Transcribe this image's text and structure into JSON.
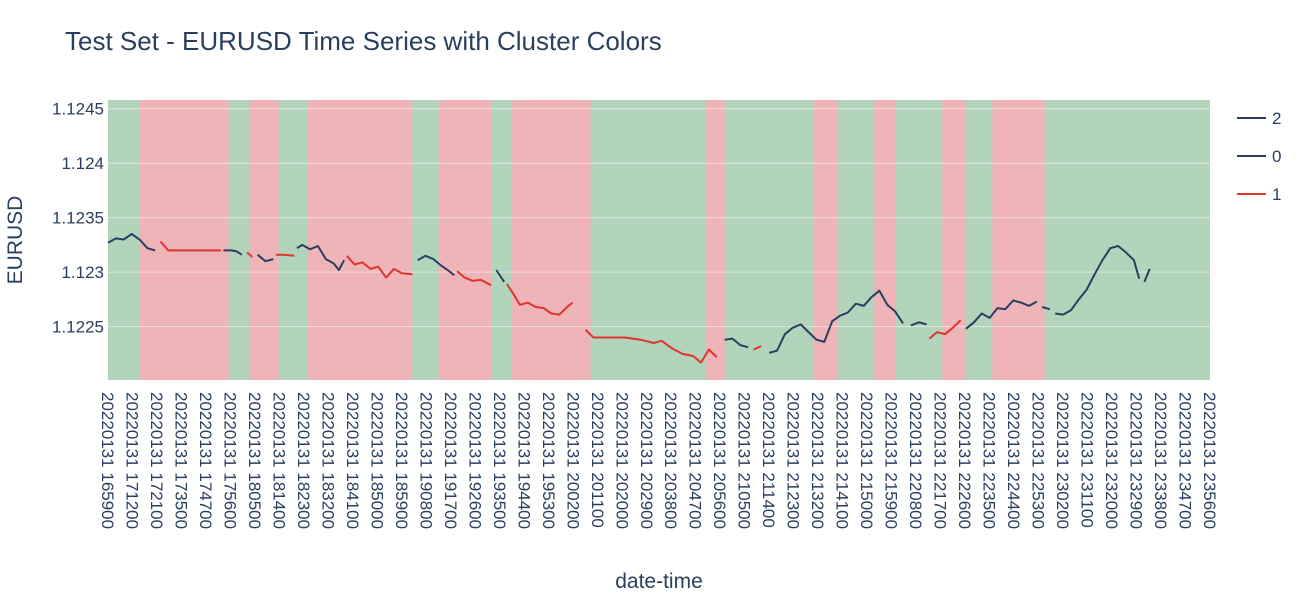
{
  "chart_data": {
    "type": "line",
    "title": "Test Set - EURUSD Time Series with Cluster Colors",
    "xlabel": "date-time",
    "ylabel": "EURUSD",
    "ylim": [
      1.12201,
      1.12458
    ],
    "yticks": [
      {
        "value": 1.1225,
        "label": "1.1225"
      },
      {
        "value": 1.123,
        "label": "1.123"
      },
      {
        "value": 1.1235,
        "label": "1.1235"
      },
      {
        "value": 1.124,
        "label": "1.124"
      },
      {
        "value": 1.1245,
        "label": "1.1245"
      }
    ],
    "x_start": "20220131 165900",
    "x_end": "20220131 235900",
    "x_tick_labels": [
      "20220131 165900",
      "20220131 171200",
      "20220131 172100",
      "20220131 173500",
      "20220131 174700",
      "20220131 175600",
      "20220131 180500",
      "20220131 181400",
      "20220131 182300",
      "20220131 183200",
      "20220131 184100",
      "20220131 185000",
      "20220131 185900",
      "20220131 190800",
      "20220131 191700",
      "20220131 192600",
      "20220131 193500",
      "20220131 194400",
      "20220131 195300",
      "20220131 200200",
      "20220131 201100",
      "20220131 202000",
      "20220131 202900",
      "20220131 203800",
      "20220131 204700",
      "20220131 205600",
      "20220131 210500",
      "20220131 211400",
      "20220131 212300",
      "20220131 213200",
      "20220131 214100",
      "20220131 215000",
      "20220131 215900",
      "20220131 220800",
      "20220131 221700",
      "20220131 222600",
      "20220131 223500",
      "20220131 224400",
      "20220131 225300",
      "20220131 230200",
      "20220131 231100",
      "20220131 232000",
      "20220131 232900",
      "20220131 233800",
      "20220131 234700",
      "20220131 235600"
    ],
    "legend": [
      {
        "name": "2",
        "color": "#2a3f5f"
      },
      {
        "name": "0",
        "color": "#2a3f5f"
      },
      {
        "name": "1",
        "color": "#e0342f"
      }
    ],
    "legend_position": "right",
    "background_bands": [
      {
        "x0": "20220131 165900",
        "x1": "20220131 171100",
        "color": "#b2d4bb"
      },
      {
        "x0": "20220131 171100",
        "x1": "20220131 174500",
        "color": "#eeb4b8"
      },
      {
        "x0": "20220131 174500",
        "x1": "20220131 175300",
        "color": "#b2d4bb"
      },
      {
        "x0": "20220131 175300",
        "x1": "20220131 180400",
        "color": "#eeb4b8"
      },
      {
        "x0": "20220131 180400",
        "x1": "20220131 181500",
        "color": "#b2d4bb"
      },
      {
        "x0": "20220131 181500",
        "x1": "20220131 185500",
        "color": "#eeb4b8"
      },
      {
        "x0": "20220131 185500",
        "x1": "20220131 190500",
        "color": "#b2d4bb"
      },
      {
        "x0": "20220131 190500",
        "x1": "20220131 192500",
        "color": "#eeb4b8"
      },
      {
        "x0": "20220131 192500",
        "x1": "20220131 193300",
        "color": "#b2d4bb"
      },
      {
        "x0": "20220131 193300",
        "x1": "20220131 200300",
        "color": "#eeb4b8"
      },
      {
        "x0": "20220131 200300",
        "x1": "20220131 201300",
        "color": "#b2d4bb"
      },
      {
        "x0": "20220131 201300",
        "x1": "20220131 204700",
        "color": "#b2d4bb"
      },
      {
        "x0": "20220131 204700",
        "x1": "20220131 205400",
        "color": "#eeb4b8"
      },
      {
        "x0": "20220131 205400",
        "x1": "20220131 210500",
        "color": "#b2d4bb"
      },
      {
        "x0": "20220131 210500",
        "x1": "20220131 212800",
        "color": "#b2d4bb"
      },
      {
        "x0": "20220131 212800",
        "x1": "20220131 213700",
        "color": "#eeb4b8"
      },
      {
        "x0": "20220131 213700",
        "x1": "20220131 214000",
        "color": "#b2d4bb"
      },
      {
        "x0": "20220131 214000",
        "x1": "20220131 215100",
        "color": "#b2d4bb"
      },
      {
        "x0": "20220131 215100",
        "x1": "20220131 215900",
        "color": "#eeb4b8"
      },
      {
        "x0": "20220131 215900",
        "x1": "20220131 221700",
        "color": "#b2d4bb"
      },
      {
        "x0": "20220131 221700",
        "x1": "20220131 222600",
        "color": "#eeb4b8"
      },
      {
        "x0": "20220131 222600",
        "x1": "20220131 223600",
        "color": "#b2d4bb"
      },
      {
        "x0": "20220131 223600",
        "x1": "20220131 225600",
        "color": "#eeb4b8"
      },
      {
        "x0": "20220131 225600",
        "x1": "20220131 230800",
        "color": "#b2d4bb"
      },
      {
        "x0": "20220131 230800",
        "x1": "20220131 235900",
        "color": "#b2d4bb"
      }
    ],
    "series": [
      {
        "name": "0",
        "color": "#2a3f5f",
        "points": [
          [
            "20220131 165900",
            1.12327
          ],
          [
            "20220131 170200",
            1.12331
          ],
          [
            "20220131 170500",
            1.1233
          ],
          [
            "20220131 170800",
            1.12335
          ],
          [
            "20220131 171100",
            1.1233
          ],
          [
            "20220131 171400",
            1.12322
          ],
          [
            "20220131 171700",
            1.1232
          ]
        ]
      },
      {
        "name": "1",
        "color": "#e0342f",
        "points": [
          [
            "20220131 171900",
            1.12328
          ],
          [
            "20220131 172200",
            1.1232
          ],
          [
            "20220131 172800",
            1.1232
          ],
          [
            "20220131 173500",
            1.1232
          ],
          [
            "20220131 174200",
            1.1232
          ]
        ]
      },
      {
        "name": "0",
        "color": "#2a3f5f",
        "points": [
          [
            "20220131 174300",
            1.1232
          ],
          [
            "20220131 174600",
            1.1232
          ],
          [
            "20220131 174800",
            1.12319
          ],
          [
            "20220131 175000",
            1.12316
          ]
        ]
      },
      {
        "name": "1",
        "color": "#e0342f",
        "points": [
          [
            "20220131 175200",
            1.12318
          ],
          [
            "20220131 175400",
            1.12314
          ]
        ]
      },
      {
        "name": "0",
        "color": "#2a3f5f",
        "points": [
          [
            "20220131 175600",
            1.12316
          ],
          [
            "20220131 175900",
            1.1231
          ],
          [
            "20220131 180200",
            1.12312
          ]
        ]
      },
      {
        "name": "1",
        "color": "#e0342f",
        "points": [
          [
            "20220131 180300",
            1.12316
          ],
          [
            "20220131 180600",
            1.12316
          ],
          [
            "20220131 181000",
            1.12315
          ]
        ]
      },
      {
        "name": "0",
        "color": "#2a3f5f",
        "points": [
          [
            "20220131 181100",
            1.12322
          ],
          [
            "20220131 181300",
            1.12325
          ],
          [
            "20220131 181600",
            1.12321
          ],
          [
            "20220131 181900",
            1.12324
          ],
          [
            "20220131 182200",
            1.12312
          ],
          [
            "20220131 182500",
            1.12308
          ],
          [
            "20220131 182700",
            1.12302
          ],
          [
            "20220131 182900",
            1.12311
          ]
        ]
      },
      {
        "name": "1",
        "color": "#e0342f",
        "points": [
          [
            "20220131 183000",
            1.12315
          ],
          [
            "20220131 183300",
            1.12307
          ],
          [
            "20220131 183600",
            1.12309
          ],
          [
            "20220131 183900",
            1.12303
          ],
          [
            "20220131 184200",
            1.12305
          ],
          [
            "20220131 184500",
            1.12295
          ],
          [
            "20220131 184800",
            1.12303
          ],
          [
            "20220131 185100",
            1.12299
          ],
          [
            "20220131 185500",
            1.12298
          ]
        ]
      },
      {
        "name": "0",
        "color": "#2a3f5f",
        "points": [
          [
            "20220131 185700",
            1.12311
          ],
          [
            "20220131 190000",
            1.12315
          ],
          [
            "20220131 190300",
            1.12312
          ],
          [
            "20220131 190600",
            1.12306
          ],
          [
            "20220131 190900",
            1.12301
          ],
          [
            "20220131 191100",
            1.12297
          ]
        ]
      },
      {
        "name": "1",
        "color": "#e0342f",
        "points": [
          [
            "20220131 191200",
            1.12301
          ],
          [
            "20220131 191500",
            1.12295
          ],
          [
            "20220131 191800",
            1.12292
          ],
          [
            "20220131 192100",
            1.12293
          ],
          [
            "20220131 192500",
            1.12288
          ]
        ]
      },
      {
        "name": "0",
        "color": "#2a3f5f",
        "points": [
          [
            "20220131 192700",
            1.12302
          ],
          [
            "20220131 193000",
            1.12291
          ]
        ]
      },
      {
        "name": "1",
        "color": "#e0342f",
        "points": [
          [
            "20220131 193100",
            1.12289
          ],
          [
            "20220131 193300",
            1.12282
          ],
          [
            "20220131 193600",
            1.1227
          ],
          [
            "20220131 193900",
            1.12272
          ],
          [
            "20220131 194200",
            1.12268
          ],
          [
            "20220131 194500",
            1.12267
          ],
          [
            "20220131 194800",
            1.12262
          ],
          [
            "20220131 195100",
            1.12261
          ],
          [
            "20220131 195400",
            1.12268
          ],
          [
            "20220131 195600",
            1.12272
          ]
        ]
      },
      {
        "name": "1",
        "color": "#e0342f",
        "points": [
          [
            "20220131 200100",
            1.12247
          ],
          [
            "20220131 200400",
            1.1224
          ],
          [
            "20220131 201000",
            1.1224
          ],
          [
            "20220131 201600",
            1.1224
          ],
          [
            "20220131 202200",
            1.12238
          ],
          [
            "20220131 202700",
            1.12235
          ],
          [
            "20220131 203000",
            1.12237
          ],
          [
            "20220131 203400",
            1.1223
          ],
          [
            "20220131 203800",
            1.12225
          ],
          [
            "20220131 204200",
            1.12223
          ],
          [
            "20220131 204500",
            1.12217
          ],
          [
            "20220131 204800",
            1.12229
          ],
          [
            "20220131 205100",
            1.12222
          ]
        ]
      },
      {
        "name": "0",
        "color": "#2a3f5f",
        "points": [
          [
            "20220131 205400",
            1.12238
          ],
          [
            "20220131 205700",
            1.12239
          ],
          [
            "20220131 210000",
            1.12233
          ],
          [
            "20220131 210300",
            1.12231
          ]
        ]
      },
      {
        "name": "1",
        "color": "#e0342f",
        "points": [
          [
            "20220131 210500",
            1.12229
          ],
          [
            "20220131 210800",
            1.12232
          ]
        ]
      },
      {
        "name": "0",
        "color": "#2a3f5f",
        "points": [
          [
            "20220131 211100",
            1.12226
          ],
          [
            "20220131 211400",
            1.12228
          ],
          [
            "20220131 211700",
            1.12243
          ],
          [
            "20220131 212000",
            1.12249
          ],
          [
            "20220131 212300",
            1.12252
          ],
          [
            "20220131 212600",
            1.12245
          ],
          [
            "20220131 212900",
            1.12238
          ],
          [
            "20220131 213200",
            1.12236
          ],
          [
            "20220131 213500",
            1.12255
          ],
          [
            "20220131 213800",
            1.1226
          ],
          [
            "20220131 214100",
            1.12263
          ],
          [
            "20220131 214400",
            1.12271
          ],
          [
            "20220131 214700",
            1.12269
          ],
          [
            "20220131 215000",
            1.12277
          ],
          [
            "20220131 215300",
            1.12283
          ],
          [
            "20220131 215600",
            1.1227
          ],
          [
            "20220131 215900",
            1.12264
          ],
          [
            "20220131 220200",
            1.12253
          ]
        ]
      },
      {
        "name": "0",
        "color": "#2a3f5f",
        "points": [
          [
            "20220131 220500",
            1.12251
          ],
          [
            "20220131 220800",
            1.12254
          ],
          [
            "20220131 221100",
            1.12252
          ]
        ]
      },
      {
        "name": "1",
        "color": "#e0342f",
        "points": [
          [
            "20220131 221200",
            1.12239
          ],
          [
            "20220131 221500",
            1.12245
          ],
          [
            "20220131 221800",
            1.12243
          ],
          [
            "20220131 222100",
            1.12249
          ],
          [
            "20220131 222400",
            1.12256
          ]
        ]
      },
      {
        "name": "0",
        "color": "#2a3f5f",
        "points": [
          [
            "20220131 222600",
            1.12248
          ],
          [
            "20220131 222900",
            1.12254
          ],
          [
            "20220131 223200",
            1.12262
          ],
          [
            "20220131 223500",
            1.12258
          ],
          [
            "20220131 223800",
            1.12267
          ],
          [
            "20220131 224100",
            1.12266
          ],
          [
            "20220131 224400",
            1.12274
          ],
          [
            "20220131 224700",
            1.12272
          ],
          [
            "20220131 225000",
            1.12269
          ],
          [
            "20220131 225300",
            1.12273
          ]
        ]
      },
      {
        "name": "0",
        "color": "#2a3f5f",
        "points": [
          [
            "20220131 225500",
            1.12268
          ],
          [
            "20220131 225800",
            1.12266
          ]
        ]
      },
      {
        "name": "0",
        "color": "#2a3f5f",
        "points": [
          [
            "20220131 230000",
            1.12262
          ],
          [
            "20220131 230300",
            1.12261
          ],
          [
            "20220131 230600",
            1.12265
          ],
          [
            "20220131 230900",
            1.12275
          ],
          [
            "20220131 231200",
            1.12284
          ],
          [
            "20220131 231500",
            1.12298
          ],
          [
            "20220131 231800",
            1.12311
          ],
          [
            "20220131 232100",
            1.12322
          ],
          [
            "20220131 232400",
            1.12324
          ],
          [
            "20220131 232700",
            1.12318
          ],
          [
            "20220131 233000",
            1.12311
          ],
          [
            "20220131 233200",
            1.12294
          ]
        ]
      },
      {
        "name": "0",
        "color": "#2a3f5f",
        "points": [
          [
            "20220131 233400",
            1.12291
          ],
          [
            "20220131 233600",
            1.12303
          ]
        ]
      }
    ]
  }
}
